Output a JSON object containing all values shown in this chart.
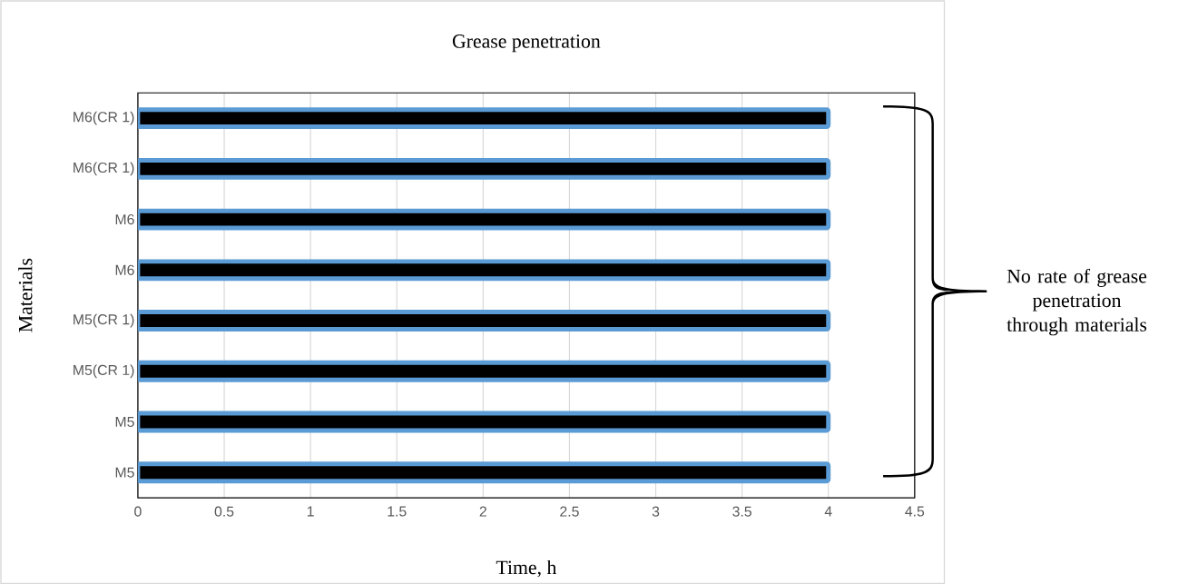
{
  "chart_data": {
    "type": "bar",
    "orientation": "horizontal",
    "title": "Grease penetration",
    "xlabel": "Time, h",
    "ylabel": "Materials",
    "categories": [
      "M6(CR 1)",
      "M6(CR 1)",
      "M6",
      "M6",
      "M5(CR 1)",
      "M5(CR 1)",
      "M5",
      "M5"
    ],
    "values": [
      4,
      4,
      4,
      4,
      4,
      4,
      4,
      4
    ],
    "color": "#5b9bd5",
    "xlim": [
      0,
      4.5
    ],
    "xticks": [
      0,
      0.5,
      1,
      1.5,
      2,
      2.5,
      3,
      3.5,
      4,
      4.5
    ],
    "grid": "x",
    "annotations": [
      "No rate of grease penetration through materials"
    ]
  }
}
